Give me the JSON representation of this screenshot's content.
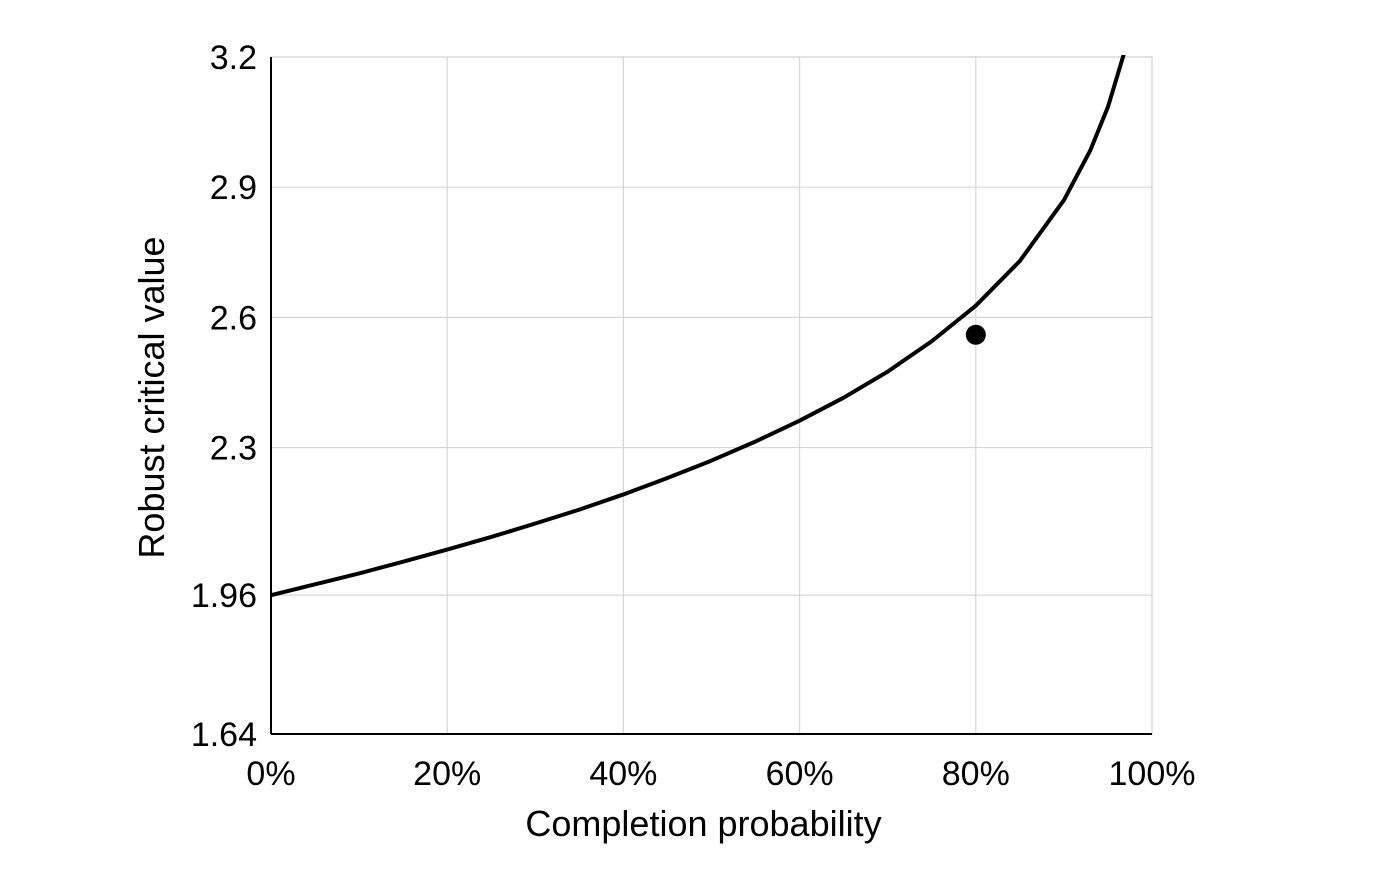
{
  "chart_data": {
    "type": "line",
    "title": "",
    "xlabel": "Completion probability",
    "ylabel": "Robust critical value",
    "x_ticks": [
      {
        "value": 0,
        "label": "0%"
      },
      {
        "value": 0.2,
        "label": "20%"
      },
      {
        "value": 0.4,
        "label": "40%"
      },
      {
        "value": 0.6,
        "label": "60%"
      },
      {
        "value": 0.8,
        "label": "80%"
      },
      {
        "value": 1.0,
        "label": "100%"
      }
    ],
    "y_ticks": [
      {
        "value": 1.64,
        "label": "1.64"
      },
      {
        "value": 1.96,
        "label": "1.96"
      },
      {
        "value": 2.3,
        "label": "2.3"
      },
      {
        "value": 2.6,
        "label": "2.6"
      },
      {
        "value": 2.9,
        "label": "2.9"
      },
      {
        "value": 3.2,
        "label": "3.2"
      }
    ],
    "xlim": [
      0,
      1
    ],
    "ylim": [
      1.64,
      3.2
    ],
    "grid": true,
    "legend": "none",
    "series": [
      {
        "color": "#000000",
        "x": [
          0,
          0.05,
          0.1,
          0.15,
          0.2,
          0.25,
          0.3,
          0.35,
          0.4,
          0.45,
          0.5,
          0.55,
          0.6,
          0.65,
          0.7,
          0.75,
          0.8,
          0.85,
          0.9,
          0.93,
          0.95,
          0.97
        ],
        "y": [
          1.96,
          1.985,
          2.01,
          2.037,
          2.065,
          2.094,
          2.125,
          2.157,
          2.192,
          2.23,
          2.27,
          2.314,
          2.362,
          2.415,
          2.475,
          2.545,
          2.627,
          2.73,
          2.87,
          2.985,
          3.085,
          3.22
        ]
      }
    ],
    "marker": {
      "x": 0.8,
      "y": 2.56,
      "color": "#000000"
    }
  }
}
